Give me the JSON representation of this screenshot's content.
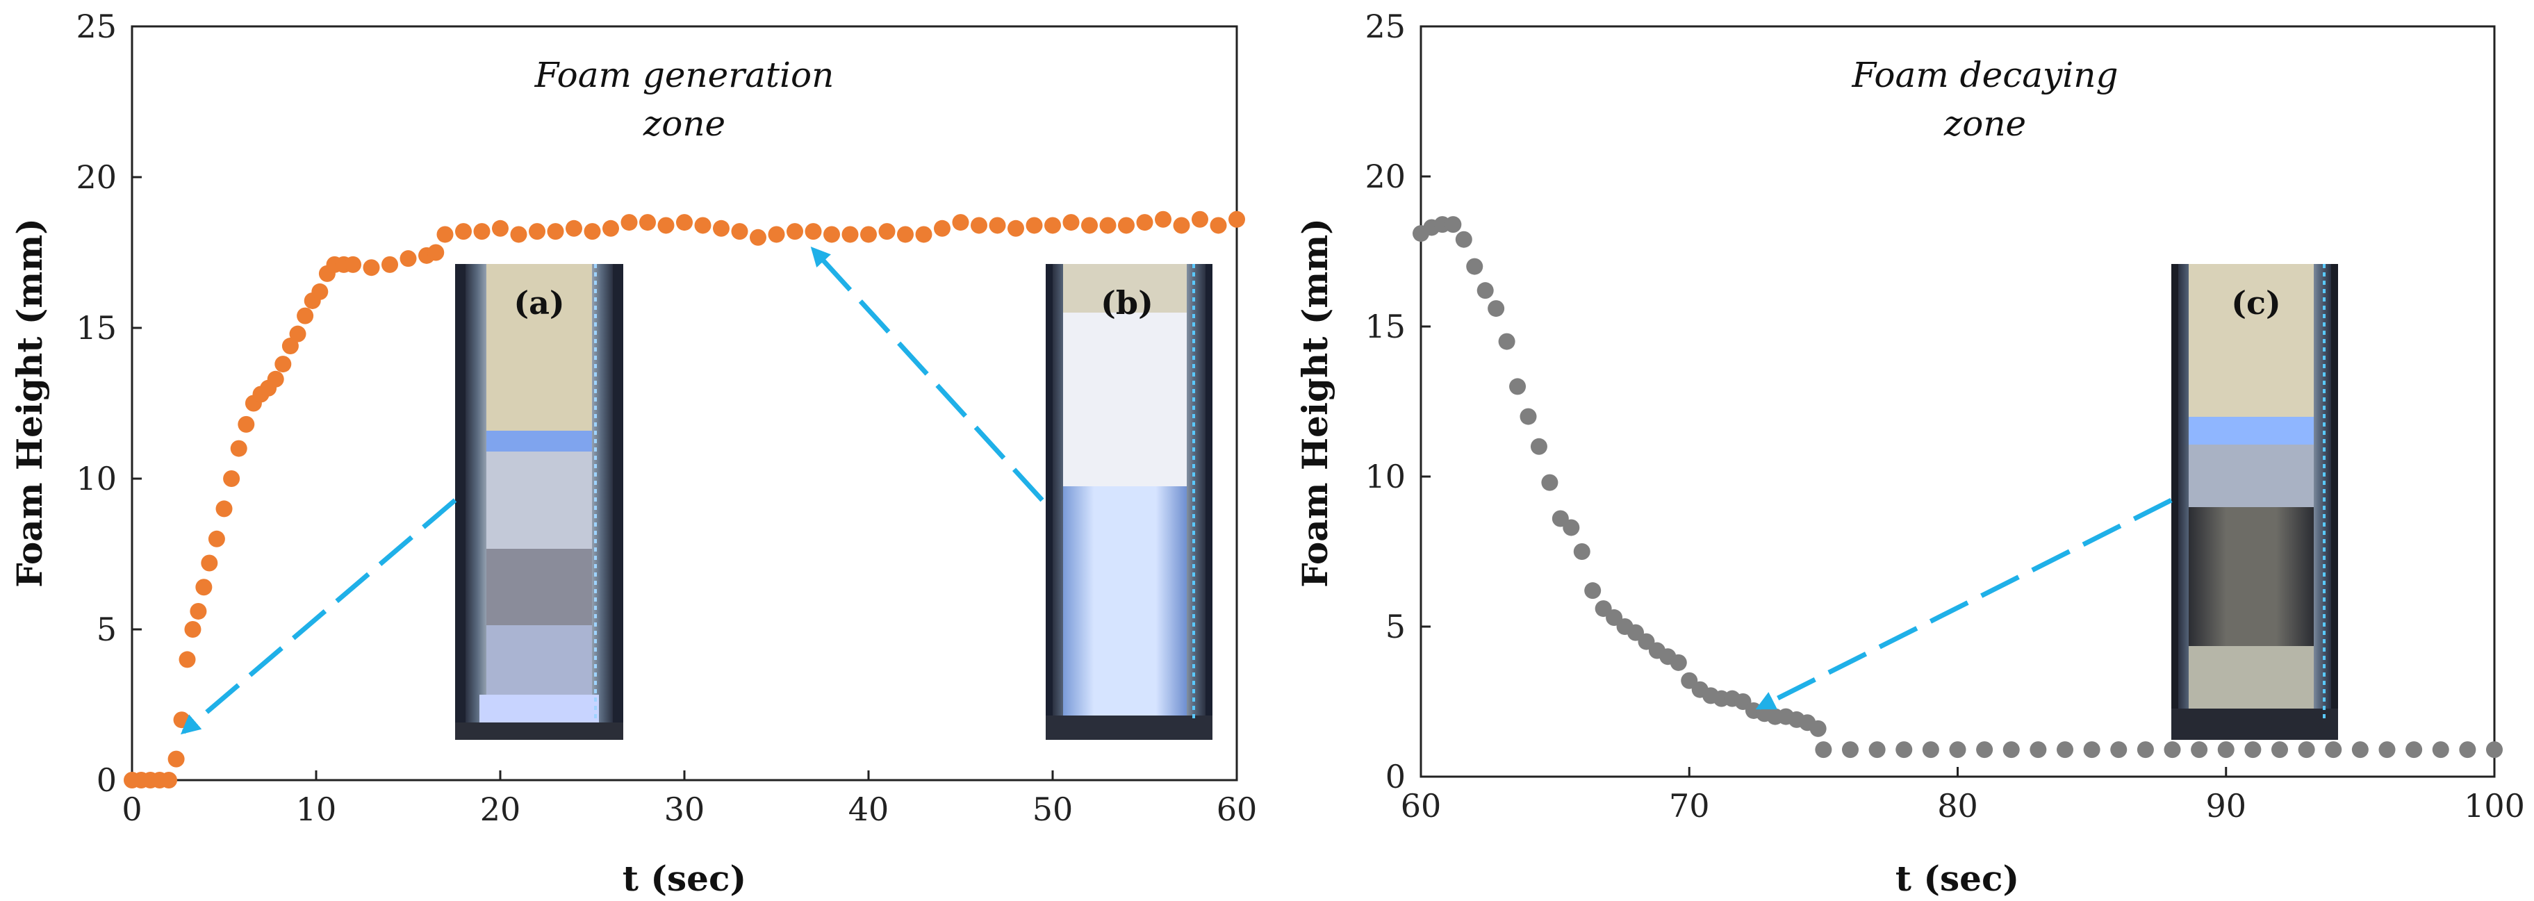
{
  "chart_data": [
    {
      "type": "scatter",
      "color": "#ed7d31",
      "title": "Foam generation zone",
      "title_lines": [
        "Foam generation",
        "zone"
      ],
      "xlabel": "t (sec)",
      "ylabel": "Foam Height (mm)",
      "xlim": [
        0,
        60
      ],
      "ylim": [
        0,
        25
      ],
      "xticks": [
        0,
        10,
        20,
        30,
        40,
        50,
        60
      ],
      "yticks": [
        0,
        5,
        10,
        15,
        20,
        25
      ],
      "grid": false,
      "series": [
        {
          "name": "Foam height",
          "x": [
            0,
            0.5,
            1.0,
            1.5,
            2.0,
            2.4,
            2.7,
            3.0,
            3.3,
            3.6,
            3.9,
            4.2,
            4.6,
            5.0,
            5.4,
            5.8,
            6.2,
            6.6,
            7.0,
            7.4,
            7.8,
            8.2,
            8.6,
            9.0,
            9.4,
            9.8,
            10.2,
            10.6,
            11.0,
            11.5,
            12.0,
            13.0,
            14.0,
            15.0,
            16.0,
            16.5,
            17.0,
            18.0,
            19.0,
            20.0,
            21.0,
            22.0,
            23.0,
            24.0,
            25.0,
            26.0,
            27.0,
            28.0,
            29.0,
            30.0,
            31.0,
            32.0,
            33.0,
            34.0,
            35.0,
            36.0,
            37.0,
            38.0,
            39.0,
            40.0,
            41.0,
            42.0,
            43.0,
            44.0,
            45.0,
            46.0,
            47.0,
            48.0,
            49.0,
            50.0,
            51.0,
            52.0,
            53.0,
            54.0,
            55.0,
            56.0,
            57.0,
            58.0,
            59.0,
            60.0
          ],
          "y": [
            0,
            0,
            0,
            0,
            0,
            0.7,
            2.0,
            4.0,
            5.0,
            5.6,
            6.4,
            7.2,
            8.0,
            9.0,
            10.0,
            11.0,
            11.8,
            12.5,
            12.8,
            13.0,
            13.3,
            13.8,
            14.4,
            14.8,
            15.4,
            15.9,
            16.2,
            16.8,
            17.1,
            17.1,
            17.1,
            17.0,
            17.1,
            17.3,
            17.4,
            17.5,
            18.1,
            18.2,
            18.2,
            18.3,
            18.1,
            18.2,
            18.2,
            18.3,
            18.2,
            18.3,
            18.5,
            18.5,
            18.4,
            18.5,
            18.4,
            18.3,
            18.2,
            18.0,
            18.1,
            18.2,
            18.2,
            18.1,
            18.1,
            18.1,
            18.2,
            18.1,
            18.1,
            18.3,
            18.5,
            18.4,
            18.4,
            18.3,
            18.4,
            18.4,
            18.5,
            18.4,
            18.4,
            18.4,
            18.5,
            18.6,
            18.4,
            18.6,
            18.4,
            18.6
          ]
        }
      ],
      "insets": [
        {
          "label": "(a)",
          "kind": "photo-partial-foam",
          "arrow_target": {
            "x": 2.8,
            "y": 1.6
          }
        },
        {
          "label": "(b)",
          "kind": "photo-full-foam",
          "arrow_target": {
            "x": 37.0,
            "y": 17.6
          }
        }
      ]
    },
    {
      "type": "scatter",
      "color": "#7f7f7f",
      "title": "Foam decaying zone",
      "title_lines": [
        "Foam decaying",
        "zone"
      ],
      "xlabel": "t (sec)",
      "ylabel": "Foam Height (mm)",
      "xlim": [
        60,
        100
      ],
      "ylim": [
        0,
        25
      ],
      "xticks": [
        60,
        70,
        80,
        90,
        100
      ],
      "yticks": [
        0,
        5,
        10,
        15,
        20,
        25
      ],
      "grid": false,
      "series": [
        {
          "name": "Foam height",
          "x": [
            60.0,
            60.4,
            60.8,
            61.2,
            61.6,
            62.0,
            62.4,
            62.8,
            63.2,
            63.6,
            64.0,
            64.4,
            64.8,
            65.2,
            65.6,
            66.0,
            66.4,
            66.8,
            67.2,
            67.6,
            68.0,
            68.4,
            68.8,
            69.2,
            69.6,
            70.0,
            70.4,
            70.8,
            71.2,
            71.6,
            72.0,
            72.4,
            72.8,
            73.2,
            73.6,
            74.0,
            74.4,
            74.8,
            75.0,
            76,
            77,
            78,
            79,
            80,
            81,
            82,
            83,
            84,
            85,
            86,
            87,
            88,
            89,
            90,
            91,
            92,
            93,
            94,
            95,
            96,
            97,
            98,
            99,
            100
          ],
          "y": [
            18.1,
            18.3,
            18.4,
            18.4,
            17.9,
            17.0,
            16.2,
            15.6,
            14.5,
            13.0,
            12.0,
            11.0,
            9.8,
            8.6,
            8.3,
            7.5,
            6.2,
            5.6,
            5.3,
            5.0,
            4.8,
            4.5,
            4.2,
            4.0,
            3.8,
            3.2,
            2.9,
            2.7,
            2.6,
            2.6,
            2.5,
            2.2,
            2.1,
            2.0,
            2.0,
            1.9,
            1.8,
            1.6,
            0.9,
            0.9,
            0.9,
            0.9,
            0.9,
            0.9,
            0.9,
            0.9,
            0.9,
            0.9,
            0.9,
            0.9,
            0.9,
            0.9,
            0.9,
            0.9,
            0.9,
            0.9,
            0.9,
            0.9,
            0.9,
            0.9,
            0.9,
            0.9,
            0.9,
            0.9
          ]
        }
      ],
      "insets": [
        {
          "label": "(c)",
          "kind": "photo-decayed-foam",
          "arrow_target": {
            "x": 72.6,
            "y": 2.3
          }
        }
      ]
    }
  ],
  "arrow_color": "#1fb0e8"
}
